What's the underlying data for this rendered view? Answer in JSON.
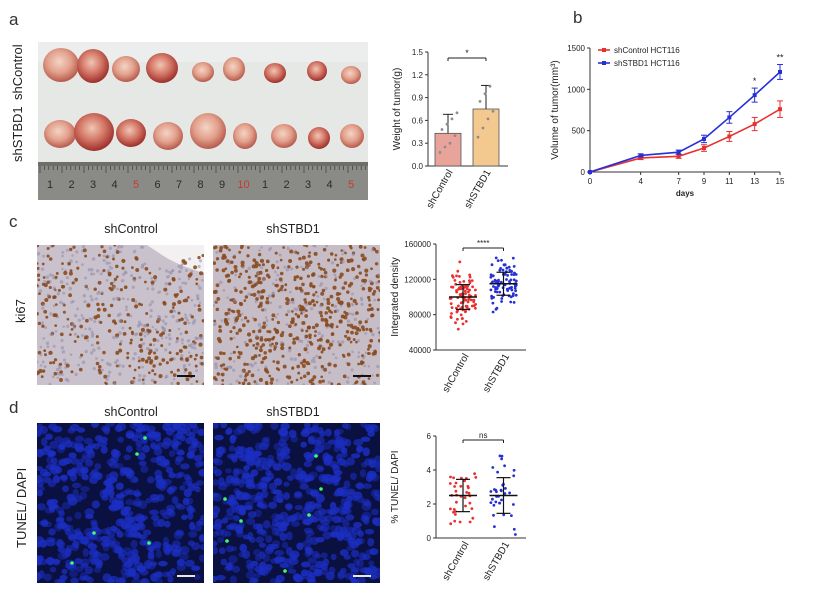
{
  "panels": {
    "a": "a",
    "b": "b",
    "c": "c",
    "d": "d"
  },
  "panel_a": {
    "row_labels": [
      "shControl",
      "shSTBD1"
    ],
    "ruler_numbers": [
      "1",
      "2",
      "3",
      "4",
      "5",
      "6",
      "7",
      "8",
      "9",
      "10",
      "1",
      "2",
      "3",
      "4",
      "5"
    ]
  },
  "panel_c": {
    "col_labels": [
      "shControl",
      "shSTBD1"
    ],
    "row_label": "ki67"
  },
  "panel_d": {
    "col_labels": [
      "shControl",
      "shSTBD1"
    ],
    "row_label": "TUNEL/ DAPI"
  },
  "colors": {
    "red_series": "#e8312f",
    "blue_series": "#2630d6",
    "bar_control": "#e8a39a",
    "bar_stbd1": "#f3c98f",
    "ihc_bg": "#c7bfc9",
    "ihc_nuclei": "#8a4a1f",
    "tunel_bg": "#0a1040",
    "tunel_nuclei": "#1c2fc4",
    "tunel_spot": "#3aff6a"
  },
  "chart_data": [
    {
      "type": "bar",
      "panel": "a",
      "categories": [
        "shControl",
        "shSTBD1"
      ],
      "values": [
        0.43,
        0.75
      ],
      "errors": [
        0.25,
        0.31
      ],
      "points": [
        [
          0.18,
          0.25,
          0.3,
          0.4,
          0.48,
          0.55,
          0.62,
          0.7
        ],
        [
          0.38,
          0.5,
          0.62,
          0.72,
          0.85,
          0.95,
          1.05
        ]
      ],
      "title": "",
      "ylabel": "Weight of tumor(g)",
      "xlabel": "",
      "ylim": [
        0,
        1.5
      ],
      "yticks": [
        "0.0",
        "0.3",
        "0.6",
        "0.9",
        "1.2",
        "1.5"
      ],
      "significance": "*"
    },
    {
      "type": "line",
      "panel": "b",
      "x": [
        0,
        4,
        7,
        9,
        11,
        13,
        15
      ],
      "xticks": [
        "0",
        "4",
        "7",
        "9",
        "11",
        "13",
        "15"
      ],
      "xlabel": "days",
      "ylabel": "Volume of tumor(mm³)",
      "yticks": [
        "0",
        "500",
        "1000",
        "1500"
      ],
      "ylim": [
        0,
        1500
      ],
      "series": [
        {
          "name": "shControl HCT116",
          "values": [
            0,
            170,
            190,
            290,
            430,
            580,
            760
          ],
          "errors": [
            0,
            20,
            25,
            40,
            60,
            80,
            100
          ]
        },
        {
          "name": "shSTBD1 HCT116",
          "values": [
            0,
            200,
            240,
            400,
            660,
            930,
            1210
          ],
          "errors": [
            0,
            20,
            25,
            45,
            70,
            85,
            90
          ]
        }
      ],
      "annotations": [
        {
          "x": 13,
          "text": "*"
        },
        {
          "x": 15,
          "text": "**"
        }
      ],
      "legend": "top-left"
    },
    {
      "type": "scatter",
      "panel": "c",
      "categories": [
        "shControl",
        "shSTBD1"
      ],
      "means": [
        100000,
        115000
      ],
      "sd": [
        14000,
        13000
      ],
      "ylabel": "Integrated density",
      "yticks": [
        "40000",
        "80000",
        "120000",
        "160000"
      ],
      "ylim": [
        40000,
        160000
      ],
      "significance": "****"
    },
    {
      "type": "scatter",
      "panel": "d",
      "categories": [
        "shControl",
        "shSTBD1"
      ],
      "means": [
        2.5,
        2.5
      ],
      "sd": [
        0.95,
        1.05
      ],
      "ylabel": "% TUNEL/ DAPI",
      "yticks": [
        "0",
        "2",
        "4",
        "6"
      ],
      "ylim": [
        0,
        6
      ],
      "significance": "ns"
    }
  ]
}
